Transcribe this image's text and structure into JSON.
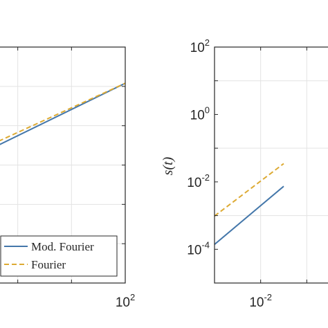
{
  "chart_data": [
    {
      "type": "line",
      "x_scale": "log",
      "y_scale": "log",
      "xlim": [
        0.0001,
        100
      ],
      "ylim": [
        1e-05,
        10
      ],
      "x_tick_labels": [
        {
          "base": "10",
          "exp": "2"
        }
      ],
      "y_tick_labels": [],
      "grid": true,
      "legend": "bottom-left",
      "xlabel": "",
      "ylabel": "",
      "title": "",
      "series": [
        {
          "name": "Mod. Fourier",
          "color": "#4477aa",
          "style": "solid",
          "x": [
            0.0001,
            100
          ],
          "y": [
            0.012,
            1.2
          ]
        },
        {
          "name": "Fourier",
          "color": "#ddaa33",
          "style": "dashed",
          "x": [
            0.0001,
            100
          ],
          "y": [
            0.016,
            1.2
          ]
        }
      ]
    },
    {
      "type": "line",
      "x_scale": "log",
      "y_scale": "log",
      "xlim": [
        0.0001,
        100
      ],
      "ylim": [
        1e-05,
        100
      ],
      "x_tick_labels": [
        {
          "base": "10",
          "exp": "-2"
        }
      ],
      "y_tick_labels": [
        {
          "base": "10",
          "exp": "2"
        },
        {
          "base": "10",
          "exp": "0"
        },
        {
          "base": "10",
          "exp": "-2"
        },
        {
          "base": "10",
          "exp": "-4"
        }
      ],
      "grid": true,
      "xlabel": "",
      "ylabel": "s(t)",
      "title": "",
      "series": [
        {
          "name": "Mod. Fourier",
          "color": "#4477aa",
          "style": "solid",
          "x": [
            0.0001,
            0.1
          ],
          "y": [
            0.00014,
            0.0074
          ]
        },
        {
          "name": "Fourier",
          "color": "#ddaa33",
          "style": "dashed",
          "x": [
            0.0001,
            0.1
          ],
          "y": [
            0.00097,
            0.035
          ]
        }
      ]
    }
  ]
}
